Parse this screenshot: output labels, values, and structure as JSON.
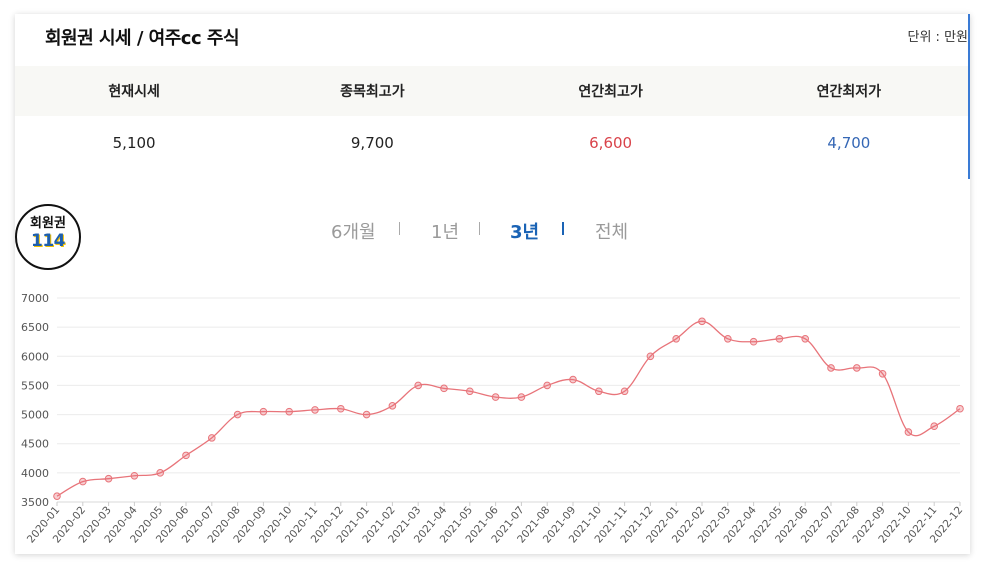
{
  "header": {
    "title": "회원권 시세 / 여주cc 주식",
    "unit": "단위 : 만원"
  },
  "table": {
    "headers": [
      "현재시세",
      "종목최고가",
      "연간최고가",
      "연간최저가"
    ],
    "values": [
      "5,100",
      "9,700",
      "6,600",
      "4,700"
    ]
  },
  "logo": {
    "line1": "회원권",
    "line2": "114"
  },
  "tabs": [
    "6개월",
    "1년",
    "3년",
    "전체"
  ],
  "active_tab": "3년",
  "colors": {
    "series": "#e8747a",
    "active_tab": "#1a63b5",
    "high": "#d9434a",
    "low": "#3567b5"
  },
  "chart_data": {
    "type": "line",
    "categories": [
      "2020-01",
      "2020-02",
      "2020-03",
      "2020-04",
      "2020-05",
      "2020-06",
      "2020-07",
      "2020-08",
      "2020-09",
      "2020-10",
      "2020-11",
      "2020-12",
      "2021-01",
      "2021-02",
      "2021-03",
      "2021-04",
      "2021-05",
      "2021-06",
      "2021-07",
      "2021-08",
      "2021-09",
      "2021-10",
      "2021-11",
      "2021-12",
      "2022-01",
      "2022-02",
      "2022-03",
      "2022-04",
      "2022-05",
      "2022-06",
      "2022-07",
      "2022-08",
      "2022-09",
      "2022-10",
      "2022-11",
      "2022-12"
    ],
    "series": [
      {
        "values": [
          3600,
          3850,
          3900,
          3950,
          4000,
          4300,
          4600,
          5000,
          5050,
          5050,
          5080,
          5100,
          5000,
          5150,
          5500,
          5450,
          5400,
          5300,
          5300,
          5500,
          5600,
          5400,
          5400,
          6000,
          6300,
          6600,
          6300,
          6250,
          6300,
          6300,
          5800,
          5800,
          5700,
          4700,
          4800,
          5100
        ]
      }
    ],
    "ylim": [
      3500,
      7000
    ],
    "yticks": [
      3500,
      4000,
      4500,
      5000,
      5500,
      6000,
      6500,
      7000
    ],
    "grid": true
  }
}
